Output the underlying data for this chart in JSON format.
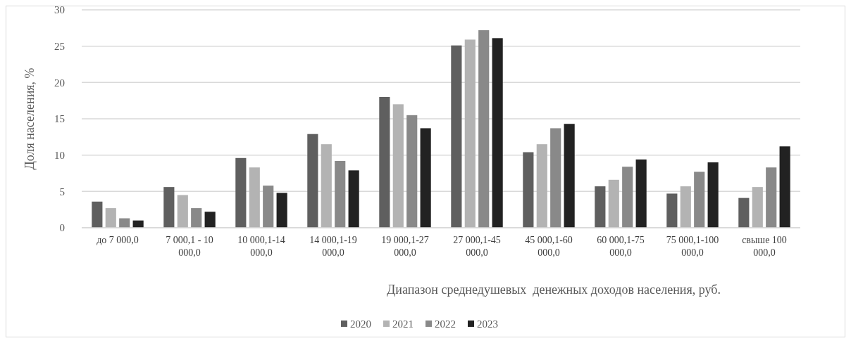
{
  "chart_data": {
    "type": "bar",
    "xlabel": "Диапазон среднедушевых  денежных доходов населения, руб.",
    "ylabel": "Доля населения, %",
    "categories": [
      "до 7 000,0",
      "7 000,1 - 10 000,0",
      "10 000,1-14 000,0",
      "14 000,1-19 000,0",
      "19 000,1-27 000,0",
      "27 000,1-45 000,0",
      "45 000,1-60 000,0",
      "60 000,1-75 000,0",
      "75 000,1-100 000,0",
      "свыше 100 000,0"
    ],
    "series": [
      {
        "name": "2020",
        "color": "#5f5f5f",
        "values": [
          3.6,
          5.6,
          9.6,
          12.9,
          18.0,
          25.1,
          10.4,
          5.7,
          4.7,
          4.1
        ]
      },
      {
        "name": "2021",
        "color": "#b3b3b3",
        "values": [
          2.7,
          4.5,
          8.3,
          11.5,
          17.0,
          25.9,
          11.5,
          6.6,
          5.7,
          5.6
        ]
      },
      {
        "name": "2022",
        "color": "#898989",
        "values": [
          1.3,
          2.7,
          5.8,
          9.2,
          15.5,
          27.2,
          13.7,
          8.4,
          7.7,
          8.3
        ]
      },
      {
        "name": "2023",
        "color": "#222222",
        "values": [
          1.0,
          2.2,
          4.8,
          7.9,
          13.7,
          26.1,
          14.3,
          9.4,
          9.0,
          11.2
        ]
      }
    ],
    "ylim": [
      0,
      30
    ],
    "yticks": [
      0,
      5,
      10,
      15,
      20,
      25,
      30
    ],
    "grid": "y",
    "legend": "bottom"
  }
}
